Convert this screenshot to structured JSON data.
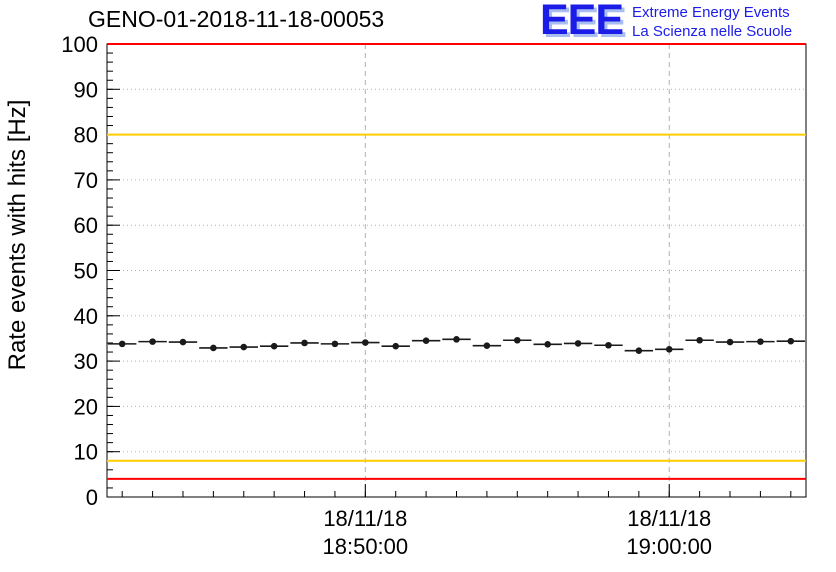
{
  "header": {
    "title": "GENO-01-2018-11-18-00053",
    "logo": {
      "text": "EEE",
      "line1": "Extreme Energy Events",
      "line2": "La Scienza nelle Scuole",
      "color": "#1c1ce8",
      "shadow_color": "#a8bdf0"
    }
  },
  "chart_data": {
    "type": "scatter",
    "title": "GENO-01-2018-11-18-00053",
    "ylabel": "Rate events with hits [Hz]",
    "ylim": [
      0,
      100
    ],
    "ytick_step": 10,
    "ytick_labels": [
      "0",
      "10",
      "20",
      "30",
      "40",
      "50",
      "60",
      "70",
      "80",
      "90",
      "100"
    ],
    "xlim": [
      -0.5,
      22.5
    ],
    "x_unit": "minutes (estimated, 1 point per minute)",
    "x": [
      0,
      1,
      2,
      3,
      4,
      5,
      6,
      7,
      8,
      9,
      10,
      11,
      12,
      13,
      14,
      15,
      16,
      17,
      18,
      19,
      20,
      21,
      22
    ],
    "values": [
      33.8,
      34.3,
      34.2,
      32.9,
      33.1,
      33.3,
      34.0,
      33.8,
      34.1,
      33.3,
      34.5,
      34.8,
      33.4,
      34.6,
      33.7,
      33.9,
      33.5,
      32.3,
      32.6,
      34.6,
      34.2,
      34.3,
      34.4
    ],
    "xticks": [
      {
        "x": 8,
        "label_date": "18/11/18",
        "label_time": "18:50:00"
      },
      {
        "x": 18,
        "label_date": "18/11/18",
        "label_time": "19:00:00"
      }
    ],
    "reference_lines": [
      {
        "y": 100,
        "color": "#ff0000"
      },
      {
        "y": 80,
        "color": "#ffcc00"
      },
      {
        "y": 8,
        "color": "#ffcc00"
      },
      {
        "y": 4,
        "color": "#ff0000"
      }
    ],
    "marker_color": "#1a1a1a",
    "grid": true,
    "grid_color": "#b0b0b0",
    "legend": "none"
  }
}
